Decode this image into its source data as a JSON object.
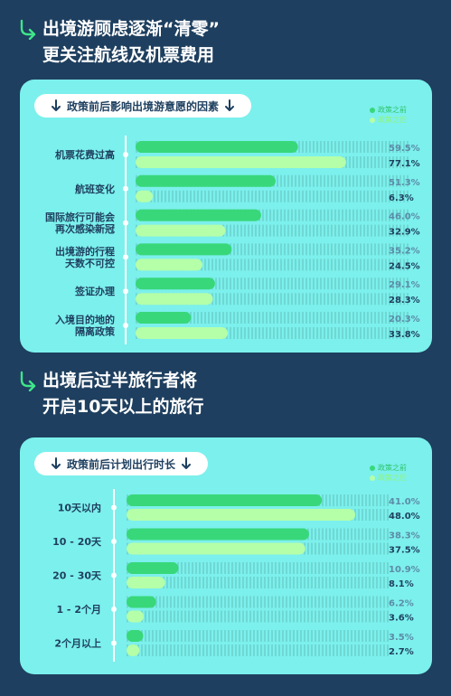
{
  "headlines": [
    {
      "lines": [
        "出境游顾虑逐渐“清零”",
        "更关注航线及机票费用"
      ]
    },
    {
      "lines": [
        "出境后过半旅行者将",
        "开启10天以上的旅行"
      ]
    }
  ],
  "colors": {
    "before": "#38d87a",
    "after": "#b5ffa8",
    "card": "#7cf0ec",
    "background": "#1e3f5f"
  },
  "chart_data": [
    {
      "type": "bar",
      "orientation": "horizontal",
      "title": "政策前后影响出境游意愿的因素",
      "legend": [
        "政策之前",
        "政策之后"
      ],
      "legend_position": "top-right",
      "categories": [
        [
          "机票花费过高"
        ],
        [
          "航班变化"
        ],
        [
          "国际旅行可能会",
          "再次感染新冠"
        ],
        [
          "出境游的行程",
          "天数不可控"
        ],
        [
          "签证办理"
        ],
        [
          "入境目的地的",
          "隔离政策"
        ]
      ],
      "series": [
        {
          "name": "政策之前",
          "values": [
            59.5,
            51.3,
            46.0,
            35.2,
            29.1,
            20.3
          ],
          "labels": [
            "59.5%",
            "51.3%",
            "46.0%",
            "35.2%",
            "29.1%",
            "20.3%"
          ]
        },
        {
          "name": "政策之后",
          "values": [
            77.1,
            6.3,
            32.9,
            24.5,
            28.3,
            33.8
          ],
          "labels": [
            "77.1%",
            "6.3%",
            "32.9%",
            "24.5%",
            "28.3%",
            "33.8%"
          ]
        }
      ],
      "xlim": [
        0,
        100
      ]
    },
    {
      "type": "bar",
      "orientation": "horizontal",
      "title": "政策前后计划出行时长",
      "legend": [
        "政策之前",
        "政策之后"
      ],
      "legend_position": "top-right",
      "categories": [
        [
          "10天以内"
        ],
        [
          "10 - 20天"
        ],
        [
          "20 - 30天"
        ],
        [
          "1 - 2个月"
        ],
        [
          "2个月以上"
        ]
      ],
      "series": [
        {
          "name": "政策之前",
          "values": [
            41.0,
            38.3,
            10.9,
            6.2,
            3.5
          ],
          "labels": [
            "41.0%",
            "38.3%",
            "10.9%",
            "6.2%",
            "3.5%"
          ]
        },
        {
          "name": "政策之后",
          "values": [
            48.0,
            37.5,
            8.1,
            3.6,
            2.7
          ],
          "labels": [
            "48.0%",
            "37.5%",
            "8.1%",
            "3.6%",
            "2.7%"
          ]
        }
      ],
      "xlim": [
        0,
        55
      ]
    }
  ]
}
